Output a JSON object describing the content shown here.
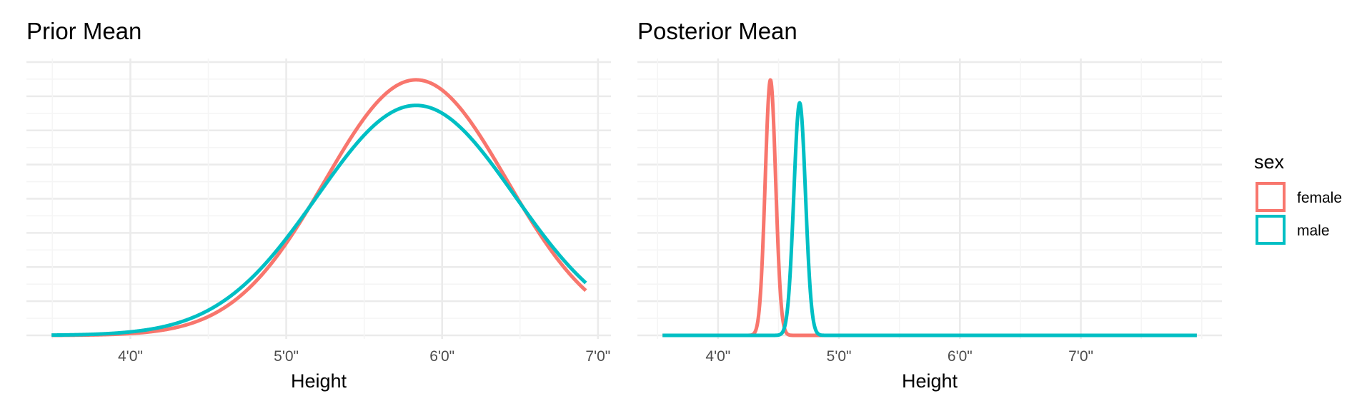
{
  "colors": {
    "female": "#F8766D",
    "male": "#00BFC4",
    "grid_major": "#EBEBEB",
    "grid_minor": "#F5F5F5"
  },
  "legend": {
    "title": "sex",
    "items": [
      {
        "label": "female",
        "color": "#F8766D"
      },
      {
        "label": "male",
        "color": "#00BFC4"
      }
    ]
  },
  "chart_data": [
    {
      "type": "line",
      "title": "Prior Mean",
      "xlabel": "Height",
      "ylabel": "",
      "x_unit": "inches",
      "xlim": [
        40,
        85
      ],
      "ylim": [
        0,
        1
      ],
      "x_ticks": [
        {
          "value": 48,
          "label": "4'0\""
        },
        {
          "value": 60,
          "label": "5'0\""
        },
        {
          "value": 72,
          "label": "6'0\""
        },
        {
          "value": 84,
          "label": "7'0\""
        }
      ],
      "grid": true,
      "y_axis_labels_shown": false,
      "series": [
        {
          "name": "female",
          "distribution": "normal",
          "mean": 70,
          "sd": 7.0,
          "relative_peak": 1.0
        },
        {
          "name": "male",
          "distribution": "normal",
          "mean": 70,
          "sd": 7.6,
          "relative_peak": 0.9
        }
      ]
    },
    {
      "type": "line",
      "title": "Posterior Mean",
      "xlabel": "Height",
      "ylabel": "",
      "x_unit": "inches",
      "xlim": [
        40,
        98
      ],
      "ylim": [
        0,
        1
      ],
      "x_ticks": [
        {
          "value": 48,
          "label": "4'0\""
        },
        {
          "value": 60,
          "label": "5'0\""
        },
        {
          "value": 72,
          "label": "6'0\""
        },
        {
          "value": 84,
          "label": "7'0\""
        }
      ],
      "grid": true,
      "y_axis_labels_shown": false,
      "series": [
        {
          "name": "female",
          "distribution": "normal",
          "mean": 53.2,
          "sd": 0.52,
          "relative_peak": 1.0
        },
        {
          "name": "male",
          "distribution": "normal",
          "mean": 56.1,
          "sd": 0.58,
          "relative_peak": 0.91
        }
      ]
    }
  ]
}
